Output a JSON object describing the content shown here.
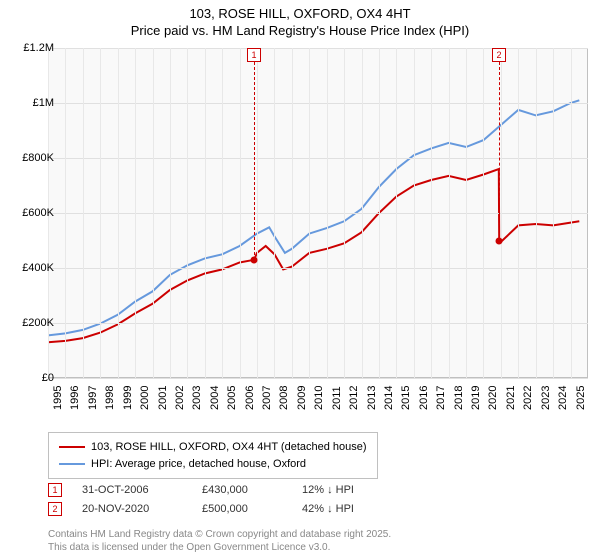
{
  "title_line1": "103, ROSE HILL, OXFORD, OX4 4HT",
  "title_line2": "Price paid vs. HM Land Registry's House Price Index (HPI)",
  "chart": {
    "type": "line",
    "background_color": "#f9f9f9",
    "grid_color": "#e0e0e0",
    "border_color": "#c0c0c0",
    "x": {
      "min": 1995,
      "max": 2026,
      "tick_step": 1,
      "label_rotation": -90,
      "label_fontsize": 11
    },
    "y": {
      "min": 0,
      "max": 1200000,
      "tick_step": 200000,
      "labels": [
        "£0",
        "£200K",
        "£400K",
        "£600K",
        "£800K",
        "£1M",
        "£1.2M"
      ],
      "label_fontsize": 11
    },
    "series": [
      {
        "name": "price_paid",
        "label": "103, ROSE HILL, OXFORD, OX4 4HT (detached house)",
        "color": "#cc0000",
        "line_width": 2,
        "data": [
          [
            1995,
            130000
          ],
          [
            1996,
            135000
          ],
          [
            1997,
            145000
          ],
          [
            1998,
            165000
          ],
          [
            1999,
            195000
          ],
          [
            2000,
            235000
          ],
          [
            2001,
            270000
          ],
          [
            2002,
            320000
          ],
          [
            2003,
            355000
          ],
          [
            2004,
            380000
          ],
          [
            2005,
            395000
          ],
          [
            2006,
            420000
          ],
          [
            2006.83,
            430000
          ],
          [
            2007,
            455000
          ],
          [
            2007.5,
            480000
          ],
          [
            2008,
            450000
          ],
          [
            2008.5,
            395000
          ],
          [
            2009,
            405000
          ],
          [
            2010,
            455000
          ],
          [
            2011,
            470000
          ],
          [
            2012,
            490000
          ],
          [
            2013,
            530000
          ],
          [
            2014,
            600000
          ],
          [
            2015,
            660000
          ],
          [
            2016,
            700000
          ],
          [
            2017,
            720000
          ],
          [
            2018,
            735000
          ],
          [
            2019,
            720000
          ],
          [
            2020,
            740000
          ],
          [
            2020.88,
            760000
          ],
          [
            2020.9,
            500000
          ],
          [
            2021,
            495000
          ],
          [
            2022,
            555000
          ],
          [
            2023,
            560000
          ],
          [
            2024,
            555000
          ],
          [
            2025,
            565000
          ],
          [
            2025.5,
            570000
          ]
        ]
      },
      {
        "name": "hpi",
        "label": "HPI: Average price, detached house, Oxford",
        "color": "#6699dd",
        "line_width": 2,
        "data": [
          [
            1995,
            155000
          ],
          [
            1996,
            162000
          ],
          [
            1997,
            175000
          ],
          [
            1998,
            198000
          ],
          [
            1999,
            230000
          ],
          [
            2000,
            278000
          ],
          [
            2001,
            315000
          ],
          [
            2002,
            375000
          ],
          [
            2003,
            410000
          ],
          [
            2004,
            435000
          ],
          [
            2005,
            450000
          ],
          [
            2006,
            480000
          ],
          [
            2007,
            525000
          ],
          [
            2007.7,
            548000
          ],
          [
            2008,
            515000
          ],
          [
            2008.6,
            455000
          ],
          [
            2009,
            470000
          ],
          [
            2010,
            525000
          ],
          [
            2011,
            545000
          ],
          [
            2012,
            570000
          ],
          [
            2013,
            615000
          ],
          [
            2014,
            695000
          ],
          [
            2015,
            760000
          ],
          [
            2016,
            810000
          ],
          [
            2017,
            835000
          ],
          [
            2018,
            855000
          ],
          [
            2019,
            840000
          ],
          [
            2020,
            865000
          ],
          [
            2021,
            920000
          ],
          [
            2022,
            975000
          ],
          [
            2023,
            955000
          ],
          [
            2024,
            970000
          ],
          [
            2025,
            1000000
          ],
          [
            2025.5,
            1010000
          ]
        ]
      }
    ],
    "markers": [
      {
        "id": "1",
        "x": 2006.83,
        "y": 430000
      },
      {
        "id": "2",
        "x": 2020.89,
        "y": 500000
      }
    ]
  },
  "legend": {
    "items": [
      {
        "color": "#cc0000",
        "label": "103, ROSE HILL, OXFORD, OX4 4HT (detached house)"
      },
      {
        "color": "#6699dd",
        "label": "HPI: Average price, detached house, Oxford"
      }
    ]
  },
  "sales": [
    {
      "id": "1",
      "date": "31-OCT-2006",
      "price": "£430,000",
      "delta": "12% ↓ HPI"
    },
    {
      "id": "2",
      "date": "20-NOV-2020",
      "price": "£500,000",
      "delta": "42% ↓ HPI"
    }
  ],
  "footer_line1": "Contains HM Land Registry data © Crown copyright and database right 2025.",
  "footer_line2": "This data is licensed under the Open Government Licence v3.0."
}
